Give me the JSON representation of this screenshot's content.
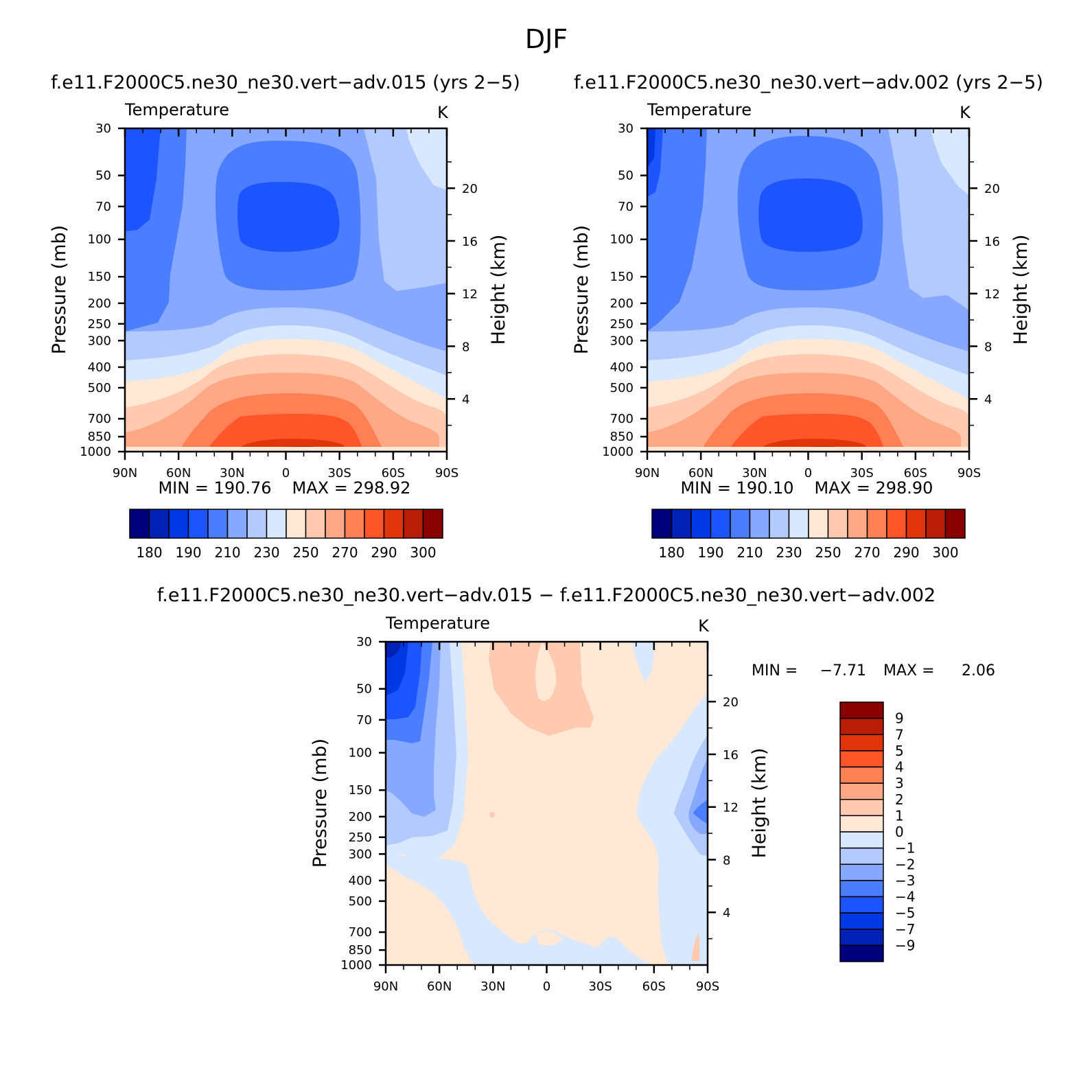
{
  "figure": {
    "title": "DJF"
  },
  "chart_data": [
    {
      "type": "heatmap",
      "title": "f.e11.F2000C5.ne30_ne30.vert−adv.015 (yrs 2−5)",
      "subtitle": "Temperature",
      "units": "K",
      "xlabel": "",
      "ylabel": "Pressure (mb)",
      "ylabel_right": "Height (km)",
      "x_ticks": [
        "90N",
        "60N",
        "30N",
        "0",
        "30S",
        "60S",
        "90S"
      ],
      "y_ticks": [
        "30",
        "50",
        "70",
        "100",
        "150",
        "200",
        "250",
        "300",
        "400",
        "500",
        "700",
        "850",
        "1000"
      ],
      "y2_ticks": [
        "20",
        "16",
        "12",
        "8",
        "4"
      ],
      "y_scale": "log",
      "min_label": "MIN = 190.76",
      "max_label": "MAX = 298.92",
      "min": 190.76,
      "max": 298.92,
      "colorbar": {
        "orientation": "horizontal",
        "labels": [
          "180",
          "190",
          "210",
          "230",
          "250",
          "270",
          "290",
          "300"
        ],
        "colors": [
          "#00007c",
          "#0021b6",
          "#0039e4",
          "#1c55ff",
          "#4a7dff",
          "#86a8ff",
          "#b3caff",
          "#d8e8ff",
          "#ffe8d6",
          "#ffcab0",
          "#ffa886",
          "#ff8055",
          "#ff5528",
          "#e0350a",
          "#b81e05",
          "#880000"
        ]
      }
    },
    {
      "type": "heatmap",
      "title": "f.e11.F2000C5.ne30_ne30.vert−adv.002 (yrs 2−5)",
      "subtitle": "Temperature",
      "units": "K",
      "xlabel": "",
      "ylabel": "Pressure (mb)",
      "ylabel_right": "Height (km)",
      "x_ticks": [
        "90N",
        "60N",
        "30N",
        "0",
        "30S",
        "60S",
        "90S"
      ],
      "y_ticks": [
        "30",
        "50",
        "70",
        "100",
        "150",
        "200",
        "250",
        "300",
        "400",
        "500",
        "700",
        "850",
        "1000"
      ],
      "y2_ticks": [
        "20",
        "16",
        "12",
        "8",
        "4"
      ],
      "y_scale": "log",
      "min_label": "MIN = 190.10",
      "max_label": "MAX = 298.90",
      "min": 190.1,
      "max": 298.9,
      "colorbar": {
        "orientation": "horizontal",
        "labels": [
          "180",
          "190",
          "210",
          "230",
          "250",
          "270",
          "290",
          "300"
        ],
        "colors": [
          "#00007c",
          "#0021b6",
          "#0039e4",
          "#1c55ff",
          "#4a7dff",
          "#86a8ff",
          "#b3caff",
          "#d8e8ff",
          "#ffe8d6",
          "#ffcab0",
          "#ffa886",
          "#ff8055",
          "#ff5528",
          "#e0350a",
          "#b81e05",
          "#880000"
        ]
      }
    },
    {
      "type": "heatmap",
      "title": "f.e11.F2000C5.ne30_ne30.vert−adv.015 − f.e11.F2000C5.ne30_ne30.vert−adv.002",
      "subtitle": "Temperature",
      "units": "K",
      "xlabel": "",
      "ylabel": "Pressure (mb)",
      "ylabel_right": "Height (km)",
      "x_ticks": [
        "90N",
        "60N",
        "30N",
        "0",
        "30S",
        "60S",
        "90S"
      ],
      "y_ticks": [
        "30",
        "50",
        "70",
        "100",
        "150",
        "200",
        "250",
        "300",
        "400",
        "500",
        "700",
        "850",
        "1000"
      ],
      "y2_ticks": [
        "20",
        "16",
        "12",
        "8",
        "4"
      ],
      "y_scale": "log",
      "min_label": "MIN =",
      "min_value": "−7.71",
      "max_label": "MAX =",
      "max_value": "2.06",
      "min": -7.71,
      "max": 2.06,
      "colorbar": {
        "orientation": "vertical",
        "labels": [
          "9",
          "7",
          "5",
          "4",
          "3",
          "2",
          "1",
          "0",
          "−1",
          "−2",
          "−3",
          "−4",
          "−5",
          "−7",
          "−9"
        ],
        "colors": [
          "#00007c",
          "#0021b6",
          "#0039e4",
          "#1c55ff",
          "#4a7dff",
          "#86a8ff",
          "#b3caff",
          "#d8e8ff",
          "#ffe8d6",
          "#ffcab0",
          "#ffa886",
          "#ff8055",
          "#ff5528",
          "#e0350a",
          "#b81e05",
          "#880000"
        ]
      }
    }
  ]
}
